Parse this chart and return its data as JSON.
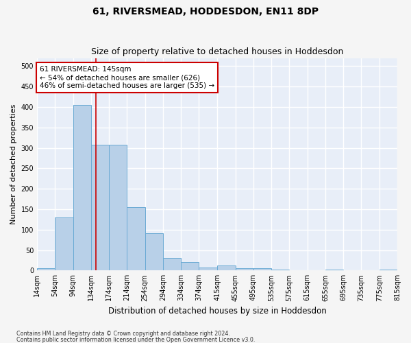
{
  "title": "61, RIVERSMEAD, HODDESDON, EN11 8DP",
  "subtitle": "Size of property relative to detached houses in Hoddesdon",
  "xlabel": "Distribution of detached houses by size in Hoddesdon",
  "ylabel": "Number of detached properties",
  "bin_labels": [
    "14sqm",
    "54sqm",
    "94sqm",
    "134sqm",
    "174sqm",
    "214sqm",
    "254sqm",
    "294sqm",
    "334sqm",
    "374sqm",
    "415sqm",
    "455sqm",
    "495sqm",
    "535sqm",
    "575sqm",
    "615sqm",
    "655sqm",
    "695sqm",
    "735sqm",
    "775sqm",
    "815sqm"
  ],
  "bar_heights": [
    6,
    130,
    405,
    308,
    308,
    155,
    92,
    30,
    20,
    8,
    12,
    5,
    6,
    3,
    0,
    0,
    3,
    0,
    0,
    2
  ],
  "bin_starts": [
    14,
    54,
    94,
    134,
    174,
    214,
    254,
    294,
    334,
    374,
    415,
    455,
    495,
    535,
    575,
    615,
    655,
    695,
    735,
    775
  ],
  "bar_color": "#b8d0e8",
  "bar_edge_color": "#6aaad4",
  "ylim": [
    0,
    520
  ],
  "yticks": [
    0,
    50,
    100,
    150,
    200,
    250,
    300,
    350,
    400,
    450,
    500
  ],
  "xlim_min": 14,
  "xlim_max": 815,
  "property_size": 145,
  "red_line_color": "#cc0000",
  "annotation_text": "61 RIVERSMEAD: 145sqm\n← 54% of detached houses are smaller (626)\n46% of semi-detached houses are larger (535) →",
  "annotation_box_color": "#ffffff",
  "annotation_box_edge": "#cc0000",
  "footer_line1": "Contains HM Land Registry data © Crown copyright and database right 2024.",
  "footer_line2": "Contains public sector information licensed under the Open Government Licence v3.0.",
  "background_color": "#e8eef8",
  "grid_color": "#ffffff",
  "fig_bg_color": "#f5f5f5",
  "title_fontsize": 10,
  "subtitle_fontsize": 9,
  "axis_label_fontsize": 8,
  "tick_fontsize": 7,
  "annotation_fontsize": 7.5,
  "footer_fontsize": 5.8
}
